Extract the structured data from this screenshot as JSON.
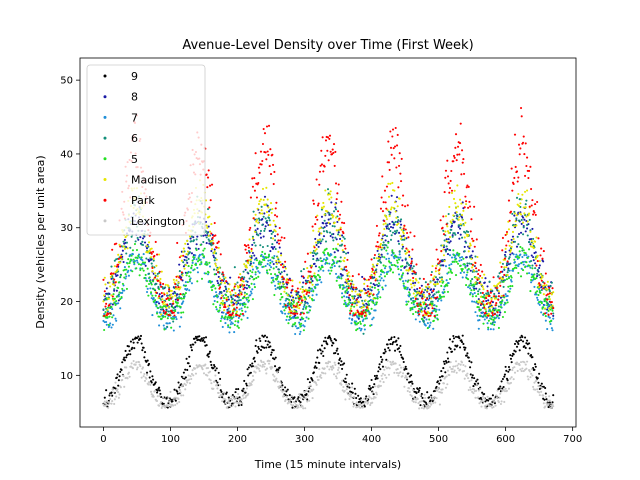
{
  "chart_data": {
    "type": "scatter",
    "title": "Avenue-Level Density over Time (First Week)",
    "xlabel": "Time (15 minute intervals)",
    "ylabel": "Density (vehicles per unit area)",
    "xlim": [
      -35,
      705
    ],
    "ylim": [
      3,
      53
    ],
    "xticks": [
      0,
      100,
      200,
      300,
      400,
      500,
      600,
      700
    ],
    "yticks": [
      10,
      20,
      30,
      40,
      50
    ],
    "n_points": 672,
    "period": 96,
    "grid": false,
    "legend_position": "top-left",
    "series": [
      {
        "name": "9",
        "color": "#000000",
        "base": 9.5,
        "amplitude": 4.0,
        "noise": 1.0,
        "min": 5.6,
        "max": 15.4
      },
      {
        "name": "8",
        "color": "#1a1aa6",
        "base": 24.0,
        "amplitude": 5.0,
        "noise": 2.2,
        "min": 17.5,
        "max": 37.0
      },
      {
        "name": "7",
        "color": "#1f8fd8",
        "base": 20.5,
        "amplitude": 4.0,
        "noise": 1.4,
        "min": 12.0,
        "max": 26.5
      },
      {
        "name": "6",
        "color": "#138f7a",
        "base": 24.0,
        "amplitude": 5.0,
        "noise": 2.4,
        "min": 13.0,
        "max": 38.0
      },
      {
        "name": "5",
        "color": "#22e022",
        "base": 21.0,
        "amplitude": 3.5,
        "noise": 1.6,
        "min": 11.0,
        "max": 32.0
      },
      {
        "name": "Madison",
        "color": "#e6e600",
        "base": 25.0,
        "amplitude": 6.0,
        "noise": 2.2,
        "min": 18.0,
        "max": 43.0
      },
      {
        "name": "Park",
        "color": "#ff0000",
        "base": 27.0,
        "amplitude": 10.0,
        "noise": 3.2,
        "min": 18.0,
        "max": 49.5
      },
      {
        "name": "Lexington",
        "color": "#c8c8c8",
        "base": 8.0,
        "amplitude": 2.5,
        "noise": 0.9,
        "min": 5.5,
        "max": 12.0
      }
    ]
  }
}
